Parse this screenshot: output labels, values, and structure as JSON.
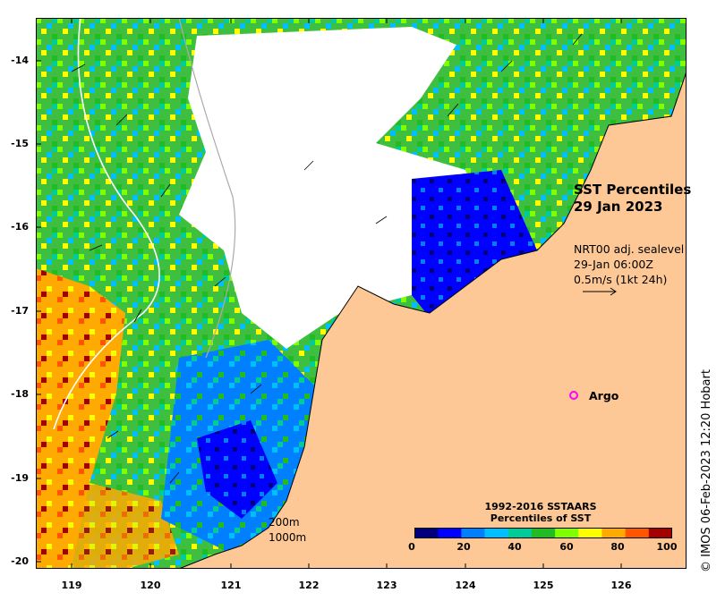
{
  "map": {
    "lat_ticks": [
      "-14",
      "-15",
      "-16",
      "-17",
      "-18",
      "-19",
      "-20"
    ],
    "lon_ticks": [
      "119",
      "120",
      "121",
      "122",
      "123",
      "124",
      "125",
      "126"
    ],
    "title_line1": "SST Percentiles",
    "title_line2": "29 Jan 2023",
    "vector_source": "NRT00 adj. sealevel",
    "vector_time": "29-Jan 06:00Z",
    "vector_scale": "0.5m/s (1kt 24h)",
    "argo_label": "Argo",
    "isobath_200": "200m",
    "isobath_1000": "1000m",
    "land_color": "#fdc896",
    "cloud_color": "#ffffff"
  },
  "colorbar": {
    "title_line1": "1992-2016 SSTAARS",
    "title_line2": "Percentiles of SST",
    "ticks": [
      "0",
      "20",
      "40",
      "60",
      "80",
      "100"
    ],
    "colors": [
      "#00007f",
      "#0000ff",
      "#0080ff",
      "#00bfff",
      "#00cc99",
      "#22bb22",
      "#7fff00",
      "#ffff00",
      "#ffaa00",
      "#ff5500",
      "#a50000"
    ]
  },
  "credit": "© IMOS 06-Feb-2023 12:20 Hobart"
}
